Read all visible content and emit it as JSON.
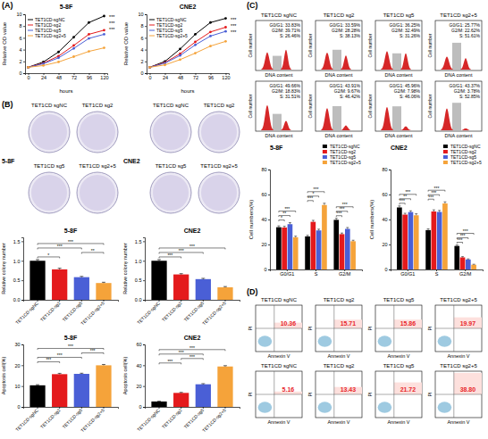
{
  "chart_data": [
    {
      "type": "line",
      "panel": "(A)",
      "title": "5-8F",
      "x_label": "hours",
      "y_label": "Relative OD value",
      "x": [
        0,
        24,
        48,
        72,
        96,
        120
      ],
      "xlim": [
        -5,
        125
      ],
      "xticks": [
        0,
        24,
        48,
        72,
        96,
        120
      ],
      "ylim": [
        0,
        10
      ],
      "yticks": [
        0,
        2,
        4,
        6,
        8,
        10
      ],
      "legend": "upper left",
      "marker": "circle",
      "series": [
        {
          "name": "TET1CD-sgNC",
          "color": "#000000",
          "values": [
            1,
            1.9,
            3.6,
            6.1,
            8.6,
            9.7
          ]
        },
        {
          "name": "TET1CD-sg2",
          "color": "#e41a1c",
          "values": [
            1,
            1.7,
            2.9,
            4.7,
            6.6,
            7.3
          ]
        },
        {
          "name": "TET1CD-sg5",
          "color": "#4a5fd6",
          "values": [
            1,
            1.6,
            2.6,
            4.2,
            5.9,
            6.6
          ]
        },
        {
          "name": "TET1CD-sg2+5",
          "color": "#f5a33a",
          "values": [
            1,
            1.3,
            1.9,
            2.8,
            3.7,
            4.3
          ]
        }
      ],
      "annotations": [
        "***",
        "***",
        "***"
      ]
    },
    {
      "type": "line",
      "title": "CNE2",
      "x_label": "hours",
      "y_label": "Relative OD value",
      "x": [
        0,
        24,
        48,
        72,
        96,
        120
      ],
      "xlim": [
        -5,
        125
      ],
      "xticks": [
        0,
        24,
        48,
        72,
        96,
        120
      ],
      "ylim": [
        0,
        10
      ],
      "yticks": [
        0,
        2,
        4,
        6,
        8,
        10
      ],
      "legend": "upper left",
      "marker": "circle",
      "series": [
        {
          "name": "TET1CD-sgNC",
          "color": "#000000",
          "values": [
            1,
            2,
            4.1,
            6.6,
            8.6,
            9.3
          ]
        },
        {
          "name": "TET1CD-sg2",
          "color": "#e41a1c",
          "values": [
            1,
            1.8,
            3.3,
            5.3,
            7,
            7.8
          ]
        },
        {
          "name": "TET1CD-sg5",
          "color": "#4a5fd6",
          "values": [
            1,
            1.7,
            3,
            4.8,
            6.3,
            7.1
          ]
        },
        {
          "name": "TET1CD-sg2+5",
          "color": "#f5a33a",
          "values": [
            1,
            1.4,
            2.3,
            3.4,
            4.6,
            5.4
          ]
        }
      ],
      "annotations": [
        "***",
        "***",
        "***"
      ]
    },
    {
      "type": "plate_grid",
      "panel": "(B)",
      "title": "5-8F",
      "labels": [
        "TET1CD sgNC",
        "TET1CD sg2",
        "TET1CD sg5",
        "TET1CD sg2+5"
      ]
    },
    {
      "type": "plate_grid",
      "title": "CNE2",
      "labels": [
        "TET1CD sgNC",
        "TET1CD sg2",
        "TET1CD sg5",
        "TET1CD sg2+5"
      ]
    },
    {
      "type": "bar",
      "title": "5-8F",
      "y_label": "Relative colony number",
      "categories": [
        "TET1CD-sgNC",
        "TET1CD-sg2",
        "TET1CD-sg5",
        "TET1CD-sg2+5"
      ],
      "values": [
        1,
        0.78,
        0.58,
        0.43
      ],
      "errors": [
        0.03,
        0.03,
        0.02,
        0.02
      ],
      "colors": [
        "#000000",
        "#e41a1c",
        "#4a5fd6",
        "#f5a33a"
      ],
      "ylim": [
        0,
        1.6
      ],
      "yticks": [
        {
          "value": 0,
          "label": "0.0"
        },
        {
          "value": 0.5,
          "label": "0.5"
        },
        {
          "value": 1,
          "label": "1.0"
        },
        {
          "value": 1.5,
          "label": "1.5"
        }
      ],
      "significance": [
        {
          "pair": [
            0,
            1
          ],
          "label": "*"
        },
        {
          "pair": [
            2,
            3
          ],
          "label": "**"
        },
        {
          "pair": [
            0,
            2
          ],
          "label": "***"
        },
        {
          "pair": [
            0,
            3
          ],
          "label": "***"
        }
      ]
    },
    {
      "type": "bar",
      "title": "CNE2",
      "y_label": "Relative colony number",
      "categories": [
        "TET1CD-sgNC",
        "TET1CD-sg2",
        "TET1CD-sg5",
        "TET1CD-sg2+5"
      ],
      "values": [
        1,
        0.65,
        0.53,
        0.32
      ],
      "errors": [
        0.03,
        0.02,
        0.02,
        0.02
      ],
      "colors": [
        "#000000",
        "#e41a1c",
        "#4a5fd6",
        "#f5a33a"
      ],
      "ylim": [
        0,
        1.6
      ],
      "yticks": [
        {
          "value": 0,
          "label": "0.0"
        },
        {
          "value": 0.5,
          "label": "0.5"
        },
        {
          "value": 1,
          "label": "1.0"
        },
        {
          "value": 1.5,
          "label": "1.5"
        }
      ],
      "significance": [
        {
          "pair": [
            0,
            1
          ],
          "label": "***"
        },
        {
          "pair": [
            0,
            2
          ],
          "label": "***"
        },
        {
          "pair": [
            0,
            3
          ],
          "label": "***"
        }
      ]
    },
    {
      "type": "bar",
      "title": "5-8F",
      "y_label": "Apoptosis cell(%)",
      "categories": [
        "TET1CD-sgNC",
        "TET1CD-sg2",
        "TET1CD-sg5",
        "TET1CD-sg2+5"
      ],
      "values": [
        10.36,
        15.71,
        15.86,
        19.97
      ],
      "errors": [
        0.3,
        0.4,
        0.3,
        0.4
      ],
      "colors": [
        "#000000",
        "#e41a1c",
        "#4a5fd6",
        "#f5a33a"
      ],
      "ylim": [
        0,
        30
      ],
      "yticks": [
        0,
        10,
        20,
        30
      ],
      "significance": [
        {
          "pair": [
            0,
            1
          ],
          "label": "***"
        },
        {
          "pair": [
            0,
            2
          ],
          "label": "***"
        },
        {
          "pair": [
            2,
            3
          ],
          "label": "***"
        },
        {
          "pair": [
            0,
            3
          ],
          "label": "***"
        }
      ]
    },
    {
      "type": "bar",
      "title": "CNE2",
      "y_label": "Apoptosis cell(%)",
      "categories": [
        "TET1CD-sgNC",
        "TET1CD-sg2",
        "TET1CD-sg5",
        "TET1CD-sg2+5"
      ],
      "values": [
        5.16,
        13.43,
        21.72,
        38.8
      ],
      "errors": [
        0.3,
        0.5,
        0.6,
        0.8
      ],
      "colors": [
        "#000000",
        "#e41a1c",
        "#4a5fd6",
        "#f5a33a"
      ],
      "ylim": [
        0,
        60
      ],
      "yticks": [
        0,
        20,
        40,
        60
      ],
      "significance": [
        {
          "pair": [
            0,
            1
          ],
          "label": "***"
        },
        {
          "pair": [
            1,
            2
          ],
          "label": "***"
        },
        {
          "pair": [
            0,
            2
          ],
          "label": "***"
        },
        {
          "pair": [
            0,
            3
          ],
          "label": "***"
        }
      ]
    },
    {
      "type": "cycle_histograms",
      "panel": "(C)",
      "color": "#d62728",
      "titles": [
        "TET1CD sgNC",
        "TET1CD sg2",
        "TET1CD sg5",
        "TET1CD sg2+5"
      ],
      "x_label": "DNA content",
      "y_label": "Cell number",
      "rows": [
        [
          {
            "values": [
              33.83,
              39.71,
              26.46
            ],
            "value_labels": [
              "G0/G1: 33.83%",
              "G2/M: 39.71%",
              "S: 26.46%"
            ]
          },
          {
            "values": [
              33.59,
              28.28,
              38.13
            ],
            "value_labels": [
              "G0/G1: 33.59%",
              "G2/M: 28.28%",
              "S: 38.13%"
            ]
          },
          {
            "values": [
              36.25,
              32.49,
              31.26
            ],
            "value_labels": [
              "G0/G1: 36.25%",
              "G2/M: 32.49%",
              "S: 31.26%"
            ]
          },
          {
            "values": [
              25.77,
              22.62,
              51.61
            ],
            "value_labels": [
              "G0/G1: 25.77%",
              "G2/M: 22.62%",
              "S: 51.61%"
            ]
          }
        ],
        [
          {
            "values": [
              49.66,
              18.83,
              31.51
            ],
            "value_labels": [
              "G0/G1: 49.66%",
              "G2/M: 18.83%",
              "S: 31.51%"
            ]
          },
          {
            "values": [
              43.91,
              9.67,
              46.42
            ],
            "value_labels": [
              "G0/G1: 43.91%",
              "G2/M: 9.67%",
              "S: 46.42%"
            ]
          },
          {
            "values": [
              45.96,
              7.98,
              46.06
            ],
            "value_labels": [
              "G0/G1: 45.96%",
              "G2/M: 7.98%",
              "S: 46.06%"
            ]
          },
          {
            "values": [
              43.37,
              3.78,
              52.85
            ],
            "value_labels": [
              "G0/G1: 43.37%",
              "G2/M: 3.78%",
              "S: 52.85%"
            ]
          }
        ]
      ]
    },
    {
      "type": "bar",
      "title": "5-8F",
      "y_label": "Cell numbers(%)",
      "categories": [
        "G0/G1",
        "S",
        "G2/M"
      ],
      "ylim": [
        0,
        80
      ],
      "yticks": [
        0,
        20,
        40,
        60,
        80
      ],
      "legend": "top right",
      "series": [
        {
          "name": "TET1CD-sgNC",
          "color": "#000000",
          "values": [
            33.83,
            26.46,
            39.71
          ],
          "errors": [
            1.1,
            0.9,
            1.2
          ]
        },
        {
          "name": "TET1CD-sg2",
          "color": "#e41a1c",
          "values": [
            33.59,
            38.13,
            28.28
          ],
          "errors": [
            1.0,
            1.2,
            0.9
          ]
        },
        {
          "name": "TET1CD-sg5",
          "color": "#4a5fd6",
          "values": [
            36.25,
            31.26,
            32.49
          ],
          "errors": [
            1.2,
            1.0,
            1.1
          ]
        },
        {
          "name": "TET1CD-sg2+5",
          "color": "#f5a33a",
          "values": [
            25.77,
            51.61,
            22.62
          ],
          "errors": [
            0.9,
            1.4,
            0.8
          ]
        }
      ],
      "significance": [
        {
          "category": 0,
          "pair": [
            0,
            1
          ],
          "label": "*"
        },
        {
          "category": 0,
          "pair": [
            0,
            2
          ],
          "label": "**"
        },
        {
          "category": 0,
          "pair": [
            0,
            3
          ],
          "label": "***"
        },
        {
          "category": 1,
          "pair": [
            0,
            1
          ],
          "label": "***"
        },
        {
          "category": 1,
          "pair": [
            0,
            2
          ],
          "label": "*"
        },
        {
          "category": 1,
          "pair": [
            0,
            3
          ],
          "label": "***"
        },
        {
          "category": 2,
          "pair": [
            0,
            1
          ],
          "label": "***"
        },
        {
          "category": 2,
          "pair": [
            0,
            2
          ],
          "label": "***"
        },
        {
          "category": 2,
          "pair": [
            0,
            3
          ],
          "label": "***"
        }
      ]
    },
    {
      "type": "bar",
      "title": "CNE2",
      "y_label": "Cell numbers(%)",
      "categories": [
        "G0/G1",
        "S",
        "G2/M"
      ],
      "ylim": [
        0,
        80
      ],
      "yticks": [
        0,
        20,
        40,
        60,
        80
      ],
      "legend": "top right",
      "series": [
        {
          "name": "TET1CD-sgNC",
          "color": "#000000",
          "values": [
            49.66,
            31.51,
            18.83
          ],
          "errors": [
            1.2,
            1.0,
            0.8
          ]
        },
        {
          "name": "TET1CD-sg2",
          "color": "#e41a1c",
          "values": [
            43.91,
            46.42,
            9.67
          ],
          "errors": [
            1.1,
            1.3,
            0.6
          ]
        },
        {
          "name": "TET1CD-sg5",
          "color": "#4a5fd6",
          "values": [
            45.96,
            46.06,
            7.98
          ],
          "errors": [
            1.0,
            1.2,
            0.5
          ]
        },
        {
          "name": "TET1CD-sg2+5",
          "color": "#f5a33a",
          "values": [
            43.37,
            52.85,
            3.78
          ],
          "errors": [
            1.2,
            1.3,
            0.4
          ]
        }
      ],
      "significance": [
        {
          "category": 0,
          "pair": [
            0,
            1
          ],
          "label": "***"
        },
        {
          "category": 0,
          "pair": [
            0,
            2
          ],
          "label": "**"
        },
        {
          "category": 0,
          "pair": [
            0,
            3
          ],
          "label": "***"
        },
        {
          "category": 1,
          "pair": [
            0,
            1
          ],
          "label": "***"
        },
        {
          "category": 1,
          "pair": [
            0,
            2
          ],
          "label": "***"
        },
        {
          "category": 1,
          "pair": [
            0,
            3
          ],
          "label": "***"
        },
        {
          "category": 2,
          "pair": [
            0,
            1
          ],
          "label": "***"
        },
        {
          "category": 2,
          "pair": [
            0,
            2
          ],
          "label": "***"
        },
        {
          "category": 2,
          "pair": [
            0,
            3
          ],
          "label": "***"
        }
      ]
    },
    {
      "type": "dot_plots",
      "panel": "(D)",
      "color": "#e8262a",
      "titles": [
        "TET1CD sgNC",
        "TET1CD sg2",
        "TET1CD sg5",
        "TET1CD sg2+5"
      ],
      "x_label": "Annexin V",
      "y_label": "PI",
      "rows": [
        {
          "values": [
            10.36,
            15.71,
            15.86,
            19.97
          ],
          "value_labels": [
            "10.36",
            "15.71",
            "15.86",
            "19.97"
          ]
        },
        {
          "values": [
            5.16,
            13.43,
            21.72,
            38.8
          ],
          "value_labels": [
            "5.16",
            "13.43",
            "21.72",
            "38.80"
          ]
        }
      ]
    }
  ]
}
